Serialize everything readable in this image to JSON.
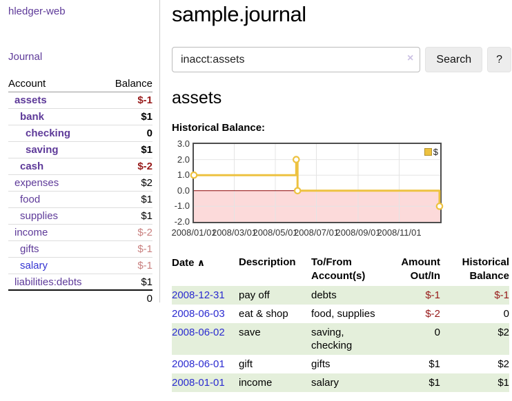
{
  "app": {
    "brand": "hledger-web",
    "nav_journal": "Journal"
  },
  "sidebar": {
    "accounts_header": {
      "account": "Account",
      "balance": "Balance"
    },
    "accounts": [
      {
        "name": "assets",
        "balance": "$-1",
        "depth": 1,
        "bold": true,
        "neg": "strong"
      },
      {
        "name": "bank",
        "balance": "$1",
        "depth": 2,
        "bold": true
      },
      {
        "name": "checking",
        "balance": "0",
        "depth": 3,
        "bold": true
      },
      {
        "name": "saving",
        "balance": "$1",
        "depth": 3,
        "bold": true
      },
      {
        "name": "cash",
        "balance": "$-2",
        "depth": 2,
        "bold": true,
        "neg": "strong"
      },
      {
        "name": "expenses",
        "balance": "$2",
        "depth": 1
      },
      {
        "name": "food",
        "balance": "$1",
        "depth": 2
      },
      {
        "name": "supplies",
        "balance": "$1",
        "depth": 2
      },
      {
        "name": "income",
        "balance": "$-2",
        "depth": 1,
        "neg": "muted"
      },
      {
        "name": "gifts",
        "balance": "$-1",
        "depth": 2,
        "neg": "muted"
      },
      {
        "name": "salary",
        "balance": "$-1",
        "depth": 2,
        "neg": "muted",
        "blue": true
      },
      {
        "name": "liabilities:debts",
        "balance": "$1",
        "depth": 1,
        "last": true
      }
    ],
    "total": "0"
  },
  "main": {
    "title": "sample.journal",
    "search": {
      "value": "inacct:assets",
      "clear_icon": "×",
      "button": "Search",
      "help_button": "?"
    },
    "account_heading": "assets",
    "chart_label": "Historical Balance:",
    "register": {
      "columns": [
        "Date",
        "Description",
        "To/From Account(s)",
        "Amount Out/In",
        "Historical Balance"
      ],
      "sort_indicator": "∧",
      "rows": [
        {
          "date": "2008-12-31",
          "description": "pay off",
          "accounts": "debts",
          "amount": "$-1",
          "amount_neg": true,
          "balance": "$-1",
          "balance_neg": true
        },
        {
          "date": "2008-06-03",
          "description": "eat & shop",
          "accounts": "food, supplies",
          "amount": "$-2",
          "amount_neg": true,
          "balance": "0",
          "balance_neg": false
        },
        {
          "date": "2008-06-02",
          "description": "save",
          "accounts": "saving, checking",
          "amount": "0",
          "amount_neg": false,
          "balance": "$2",
          "balance_neg": false
        },
        {
          "date": "2008-06-01",
          "description": "gift",
          "accounts": "gifts",
          "amount": "$1",
          "amount_neg": false,
          "balance": "$2",
          "balance_neg": false
        },
        {
          "date": "2008-01-01",
          "description": "income",
          "accounts": "salary",
          "amount": "$1",
          "amount_neg": false,
          "balance": "$1",
          "balance_neg": false
        }
      ]
    }
  },
  "chart_data": {
    "type": "line",
    "step": true,
    "title": "Historical Balance",
    "series": [
      {
        "name": "$",
        "color": "#edc240",
        "points": [
          [
            "2008-01-01",
            1
          ],
          [
            "2008-06-01",
            2
          ],
          [
            "2008-06-03",
            0
          ],
          [
            "2008-12-31",
            -1
          ]
        ]
      }
    ],
    "x_range": [
      "2008-01-01",
      "2009-01-01"
    ],
    "x_ticks": [
      "2008/01/01",
      "2008/03/01",
      "2008/05/01",
      "2008/07/01",
      "2008/09/01",
      "2008/11/01"
    ],
    "y_ticks": [
      3.0,
      2.0,
      1.0,
      0.0,
      -1.0,
      -2.0
    ],
    "ylim": [
      -2,
      3
    ],
    "grid": true,
    "legend_position": "top-right",
    "negative_region_color": "#fcdada",
    "zero_line_color": "#8b0000",
    "grid_color": "#e4e4e4"
  }
}
